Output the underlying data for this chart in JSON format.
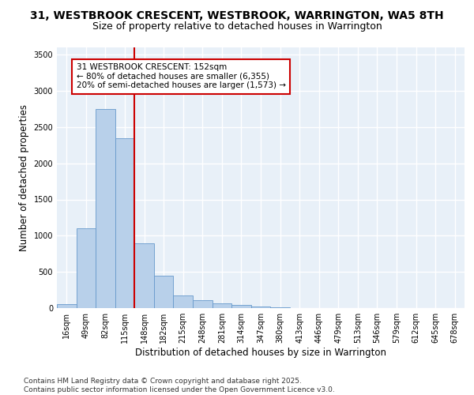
{
  "title_line1": "31, WESTBROOK CRESCENT, WESTBROOK, WARRINGTON, WA5 8TH",
  "title_line2": "Size of property relative to detached houses in Warrington",
  "xlabel": "Distribution of detached houses by size in Warrington",
  "ylabel": "Number of detached properties",
  "bar_labels": [
    "16sqm",
    "49sqm",
    "82sqm",
    "115sqm",
    "148sqm",
    "182sqm",
    "215sqm",
    "248sqm",
    "281sqm",
    "314sqm",
    "347sqm",
    "380sqm",
    "413sqm",
    "446sqm",
    "479sqm",
    "513sqm",
    "546sqm",
    "579sqm",
    "612sqm",
    "645sqm",
    "678sqm"
  ],
  "bar_values": [
    50,
    1100,
    2750,
    2350,
    900,
    450,
    175,
    110,
    65,
    40,
    20,
    8,
    4,
    2,
    1,
    0,
    0,
    0,
    0,
    0,
    0
  ],
  "bar_color": "#b8d0ea",
  "bar_edge_color": "#6699cc",
  "vline_color": "#cc0000",
  "annotation_text": "31 WESTBROOK CRESCENT: 152sqm\n← 80% of detached houses are smaller (6,355)\n20% of semi-detached houses are larger (1,573) →",
  "annotation_box_color": "#ffffff",
  "annotation_box_edge": "#cc0000",
  "ylim": [
    0,
    3600
  ],
  "yticks": [
    0,
    500,
    1000,
    1500,
    2000,
    2500,
    3000,
    3500
  ],
  "bg_color": "#e8f0f8",
  "grid_color": "#ffffff",
  "footnote": "Contains HM Land Registry data © Crown copyright and database right 2025.\nContains public sector information licensed under the Open Government Licence v3.0.",
  "title_fontsize": 10,
  "subtitle_fontsize": 9,
  "axis_label_fontsize": 8.5,
  "tick_fontsize": 7,
  "annotation_fontsize": 7.5,
  "footnote_fontsize": 6.5
}
